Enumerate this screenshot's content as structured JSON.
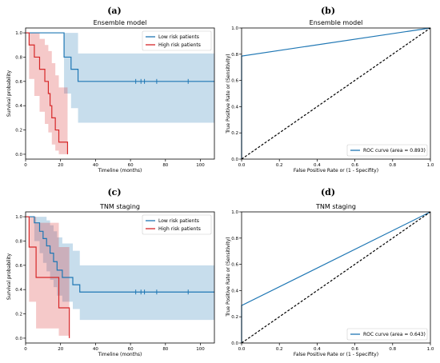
{
  "panels": [
    {
      "letter": "(a)",
      "title": "Ensemble model",
      "xlabel": "Timeline (months)",
      "ylabel": "Survival probability",
      "legend": [
        "Low risk patients",
        "High risk patients"
      ]
    },
    {
      "letter": "(b)",
      "title": "Ensemble model",
      "xlabel": "False Positive Rate or (1 - Specifity)",
      "ylabel": "True Positive Rate or (Sensitivity)",
      "legend": [
        "ROC curve (area = 0.893)"
      ]
    },
    {
      "letter": "(c)",
      "title": "TNM staging",
      "xlabel": "Timeline (months)",
      "ylabel": "Survival probability",
      "legend": [
        "Low risk patients",
        "High risk patients"
      ]
    },
    {
      "letter": "(d)",
      "title": "TNM staging",
      "xlabel": "False Positive Rate or (1 - Specifity)",
      "ylabel": "True Positive Rate or (Sensitivity)",
      "legend": [
        "ROC curve (area = 0.643)"
      ]
    }
  ],
  "chart_data": [
    {
      "type": "line",
      "title": "Ensemble model",
      "xlabel": "Timeline (months)",
      "ylabel": "Survival probability",
      "xlim": [
        0,
        108
      ],
      "ylim": [
        -0.04,
        1.04
      ],
      "xticks": [
        0,
        20,
        40,
        60,
        80,
        100
      ],
      "yticks": [
        0.0,
        0.2,
        0.4,
        0.6,
        0.8,
        1.0
      ],
      "legend_position": "top-right",
      "series": [
        {
          "name": "Low risk patients",
          "color": "#1f77b4",
          "steps": [
            [
              0,
              1.0
            ],
            [
              22,
              1.0
            ],
            [
              22,
              0.8
            ],
            [
              26,
              0.8
            ],
            [
              26,
              0.7
            ],
            [
              30,
              0.7
            ],
            [
              30,
              0.6
            ],
            [
              108,
              0.6
            ]
          ],
          "band": [
            [
              0,
              1.0,
              1.0
            ],
            [
              22,
              1.0,
              1.0
            ],
            [
              22,
              1.0,
              0.5
            ],
            [
              26,
              1.0,
              0.38
            ],
            [
              30,
              0.83,
              0.26
            ],
            [
              108,
              0.83,
              0.26
            ]
          ],
          "censor_x": [
            63,
            66,
            68,
            75,
            93
          ]
        },
        {
          "name": "High risk patients",
          "color": "#d62728",
          "steps": [
            [
              0,
              1.0
            ],
            [
              2,
              1.0
            ],
            [
              2,
              0.9
            ],
            [
              5,
              0.9
            ],
            [
              5,
              0.8
            ],
            [
              8,
              0.8
            ],
            [
              8,
              0.7
            ],
            [
              11,
              0.7
            ],
            [
              11,
              0.6
            ],
            [
              13,
              0.6
            ],
            [
              13,
              0.5
            ],
            [
              14,
              0.5
            ],
            [
              14,
              0.4
            ],
            [
              15,
              0.4
            ],
            [
              15,
              0.3
            ],
            [
              17,
              0.3
            ],
            [
              17,
              0.2
            ],
            [
              19,
              0.2
            ],
            [
              19,
              0.1
            ],
            [
              24,
              0.1
            ],
            [
              24,
              0.0
            ]
          ],
          "band": [
            [
              0,
              1.0,
              1.0
            ],
            [
              2,
              1.0,
              0.62
            ],
            [
              5,
              1.0,
              0.48
            ],
            [
              8,
              0.95,
              0.35
            ],
            [
              11,
              0.9,
              0.25
            ],
            [
              13,
              0.85,
              0.18
            ],
            [
              15,
              0.75,
              0.08
            ],
            [
              17,
              0.65,
              0.03
            ],
            [
              19,
              0.55,
              0.0
            ],
            [
              24,
              0.42,
              0.0
            ]
          ],
          "censor_x": []
        }
      ]
    },
    {
      "type": "line",
      "title": "Ensemble model",
      "xlabel": "False Positive Rate or (1 - Specifity)",
      "ylabel": "True Positive Rate or (Sensitivity)",
      "xlim": [
        0,
        1
      ],
      "ylim": [
        0,
        1
      ],
      "xticks": [
        0.0,
        0.2,
        0.4,
        0.6,
        0.8,
        1.0
      ],
      "yticks": [
        0.0,
        0.2,
        0.4,
        0.6,
        0.8,
        1.0
      ],
      "legend_position": "bottom-right",
      "series": [
        {
          "name": "ROC curve (area = 0.893)",
          "color": "#1f77b4",
          "x": [
            0,
            0,
            1
          ],
          "y": [
            0,
            0.786,
            1
          ]
        },
        {
          "color": "#000000",
          "dashed": true,
          "x": [
            0,
            1
          ],
          "y": [
            0,
            1
          ]
        }
      ]
    },
    {
      "type": "line",
      "title": "TNM staging",
      "xlabel": "Timeline (months)",
      "ylabel": "Survival probability",
      "xlim": [
        0,
        108
      ],
      "ylim": [
        -0.04,
        1.04
      ],
      "xticks": [
        0,
        20,
        40,
        60,
        80,
        100
      ],
      "yticks": [
        0.0,
        0.2,
        0.4,
        0.6,
        0.8,
        1.0
      ],
      "legend_position": "top-right",
      "series": [
        {
          "name": "Low risk patients",
          "color": "#1f77b4",
          "steps": [
            [
              0,
              1.0
            ],
            [
              5,
              1.0
            ],
            [
              5,
              0.95
            ],
            [
              8,
              0.95
            ],
            [
              8,
              0.88
            ],
            [
              10,
              0.88
            ],
            [
              10,
              0.82
            ],
            [
              12,
              0.82
            ],
            [
              12,
              0.76
            ],
            [
              14,
              0.76
            ],
            [
              14,
              0.7
            ],
            [
              16,
              0.7
            ],
            [
              16,
              0.63
            ],
            [
              18,
              0.63
            ],
            [
              18,
              0.56
            ],
            [
              21,
              0.56
            ],
            [
              21,
              0.5
            ],
            [
              27,
              0.5
            ],
            [
              27,
              0.44
            ],
            [
              31,
              0.44
            ],
            [
              31,
              0.38
            ],
            [
              108,
              0.38
            ]
          ],
          "band": [
            [
              0,
              1.0,
              1.0
            ],
            [
              5,
              1.0,
              0.8
            ],
            [
              8,
              1.0,
              0.7
            ],
            [
              10,
              1.0,
              0.62
            ],
            [
              12,
              0.97,
              0.55
            ],
            [
              14,
              0.93,
              0.48
            ],
            [
              16,
              0.88,
              0.42
            ],
            [
              18,
              0.83,
              0.35
            ],
            [
              21,
              0.78,
              0.3
            ],
            [
              27,
              0.72,
              0.24
            ],
            [
              31,
              0.6,
              0.15
            ],
            [
              108,
              0.6,
              0.15
            ]
          ],
          "censor_x": [
            63,
            66,
            68,
            75,
            93
          ]
        },
        {
          "name": "High risk patients",
          "color": "#d62728",
          "steps": [
            [
              0,
              1.0
            ],
            [
              2,
              1.0
            ],
            [
              2,
              0.75
            ],
            [
              6,
              0.75
            ],
            [
              6,
              0.5
            ],
            [
              19,
              0.5
            ],
            [
              19,
              0.25
            ],
            [
              25,
              0.25
            ],
            [
              25,
              0.0
            ]
          ],
          "band": [
            [
              0,
              1.0,
              1.0
            ],
            [
              2,
              1.0,
              0.3
            ],
            [
              6,
              0.95,
              0.08
            ],
            [
              19,
              0.75,
              0.02
            ],
            [
              25,
              0.6,
              0.0
            ]
          ],
          "censor_x": []
        }
      ]
    },
    {
      "type": "line",
      "title": "TNM staging",
      "xlabel": "False Positive Rate or (1 - Specifity)",
      "ylabel": "True Positive Rate or (Sensitivity)",
      "xlim": [
        0,
        1
      ],
      "ylim": [
        0,
        1
      ],
      "xticks": [
        0.0,
        0.2,
        0.4,
        0.6,
        0.8,
        1.0
      ],
      "yticks": [
        0.0,
        0.2,
        0.4,
        0.6,
        0.8,
        1.0
      ],
      "legend_position": "bottom-right",
      "series": [
        {
          "name": "ROC curve (area = 0.643)",
          "color": "#1f77b4",
          "x": [
            0,
            0,
            1
          ],
          "y": [
            0,
            0.286,
            1
          ]
        },
        {
          "color": "#000000",
          "dashed": true,
          "x": [
            0,
            1
          ],
          "y": [
            0,
            1
          ]
        }
      ]
    }
  ]
}
